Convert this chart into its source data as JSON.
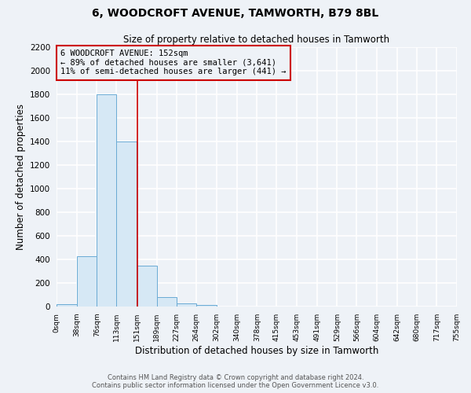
{
  "title": "6, WOODCROFT AVENUE, TAMWORTH, B79 8BL",
  "subtitle": "Size of property relative to detached houses in Tamworth",
  "xlabel": "Distribution of detached houses by size in Tamworth",
  "ylabel": "Number of detached properties",
  "bar_color": "#d6e8f5",
  "bar_edge_color": "#6aaad4",
  "bin_edges": [
    0,
    38,
    76,
    113,
    151,
    189,
    227,
    264,
    302,
    340,
    378,
    415,
    453,
    491,
    529,
    566,
    604,
    642,
    680,
    717,
    755
  ],
  "bin_labels": [
    "0sqm",
    "38sqm",
    "76sqm",
    "113sqm",
    "151sqm",
    "189sqm",
    "227sqm",
    "264sqm",
    "302sqm",
    "340sqm",
    "378sqm",
    "415sqm",
    "453sqm",
    "491sqm",
    "529sqm",
    "566sqm",
    "604sqm",
    "642sqm",
    "680sqm",
    "717sqm",
    "755sqm"
  ],
  "bar_heights": [
    20,
    430,
    1800,
    1400,
    350,
    80,
    25,
    12,
    0,
    0,
    0,
    0,
    0,
    0,
    0,
    0,
    0,
    0,
    0,
    0
  ],
  "ylim": [
    0,
    2200
  ],
  "yticks": [
    0,
    200,
    400,
    600,
    800,
    1000,
    1200,
    1400,
    1600,
    1800,
    2000,
    2200
  ],
  "property_line_x": 152,
  "property_line_color": "#cc0000",
  "annotation_text": "6 WOODCROFT AVENUE: 152sqm\n← 89% of detached houses are smaller (3,641)\n11% of semi-detached houses are larger (441) →",
  "annotation_box_color": "#cc0000",
  "footer_line1": "Contains HM Land Registry data © Crown copyright and database right 2024.",
  "footer_line2": "Contains public sector information licensed under the Open Government Licence v3.0.",
  "background_color": "#eef2f7",
  "grid_color": "#ffffff"
}
